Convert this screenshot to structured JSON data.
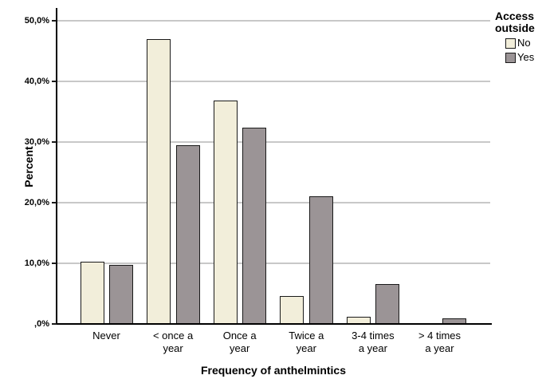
{
  "chart_data": {
    "type": "bar",
    "title": "",
    "xlabel": "Frequency of anthelmintics",
    "ylabel": "Percent",
    "categories": [
      "Never",
      "< once a\nyear",
      "Once a\nyear",
      "Twice a\nyear",
      "3-4 times\na year",
      "> 4 times\na year"
    ],
    "series": [
      {
        "name": "No",
        "color": "#f2eeda",
        "values": [
          10.3,
          47.0,
          36.9,
          4.6,
          1.2,
          0.0
        ]
      },
      {
        "name": "Yes",
        "color": "#9b9496",
        "values": [
          9.7,
          29.5,
          32.4,
          21.1,
          6.6,
          0.9
        ]
      }
    ],
    "y_ticks": [
      {
        "label": "50,0%",
        "value": 50
      },
      {
        "label": "40,0%",
        "value": 40
      },
      {
        "label": "30,0%",
        "value": 30
      },
      {
        "label": "20,0%",
        "value": 20
      },
      {
        "label": "10,0%",
        "value": 10
      },
      {
        "label": ",0%",
        "value": 0
      }
    ],
    "ylim": [
      0,
      52
    ],
    "grid": "horizontal",
    "legend_title": "Access outside",
    "legend_position": "top-right"
  },
  "colors": {
    "bar_no_fill": "#f2eeda",
    "bar_yes_fill": "#9b9496",
    "bar_border": "#1a1a1a",
    "gridline": "#c8c8c8",
    "axis_line": "#000000",
    "text": "#000000",
    "background": "#ffffff"
  }
}
